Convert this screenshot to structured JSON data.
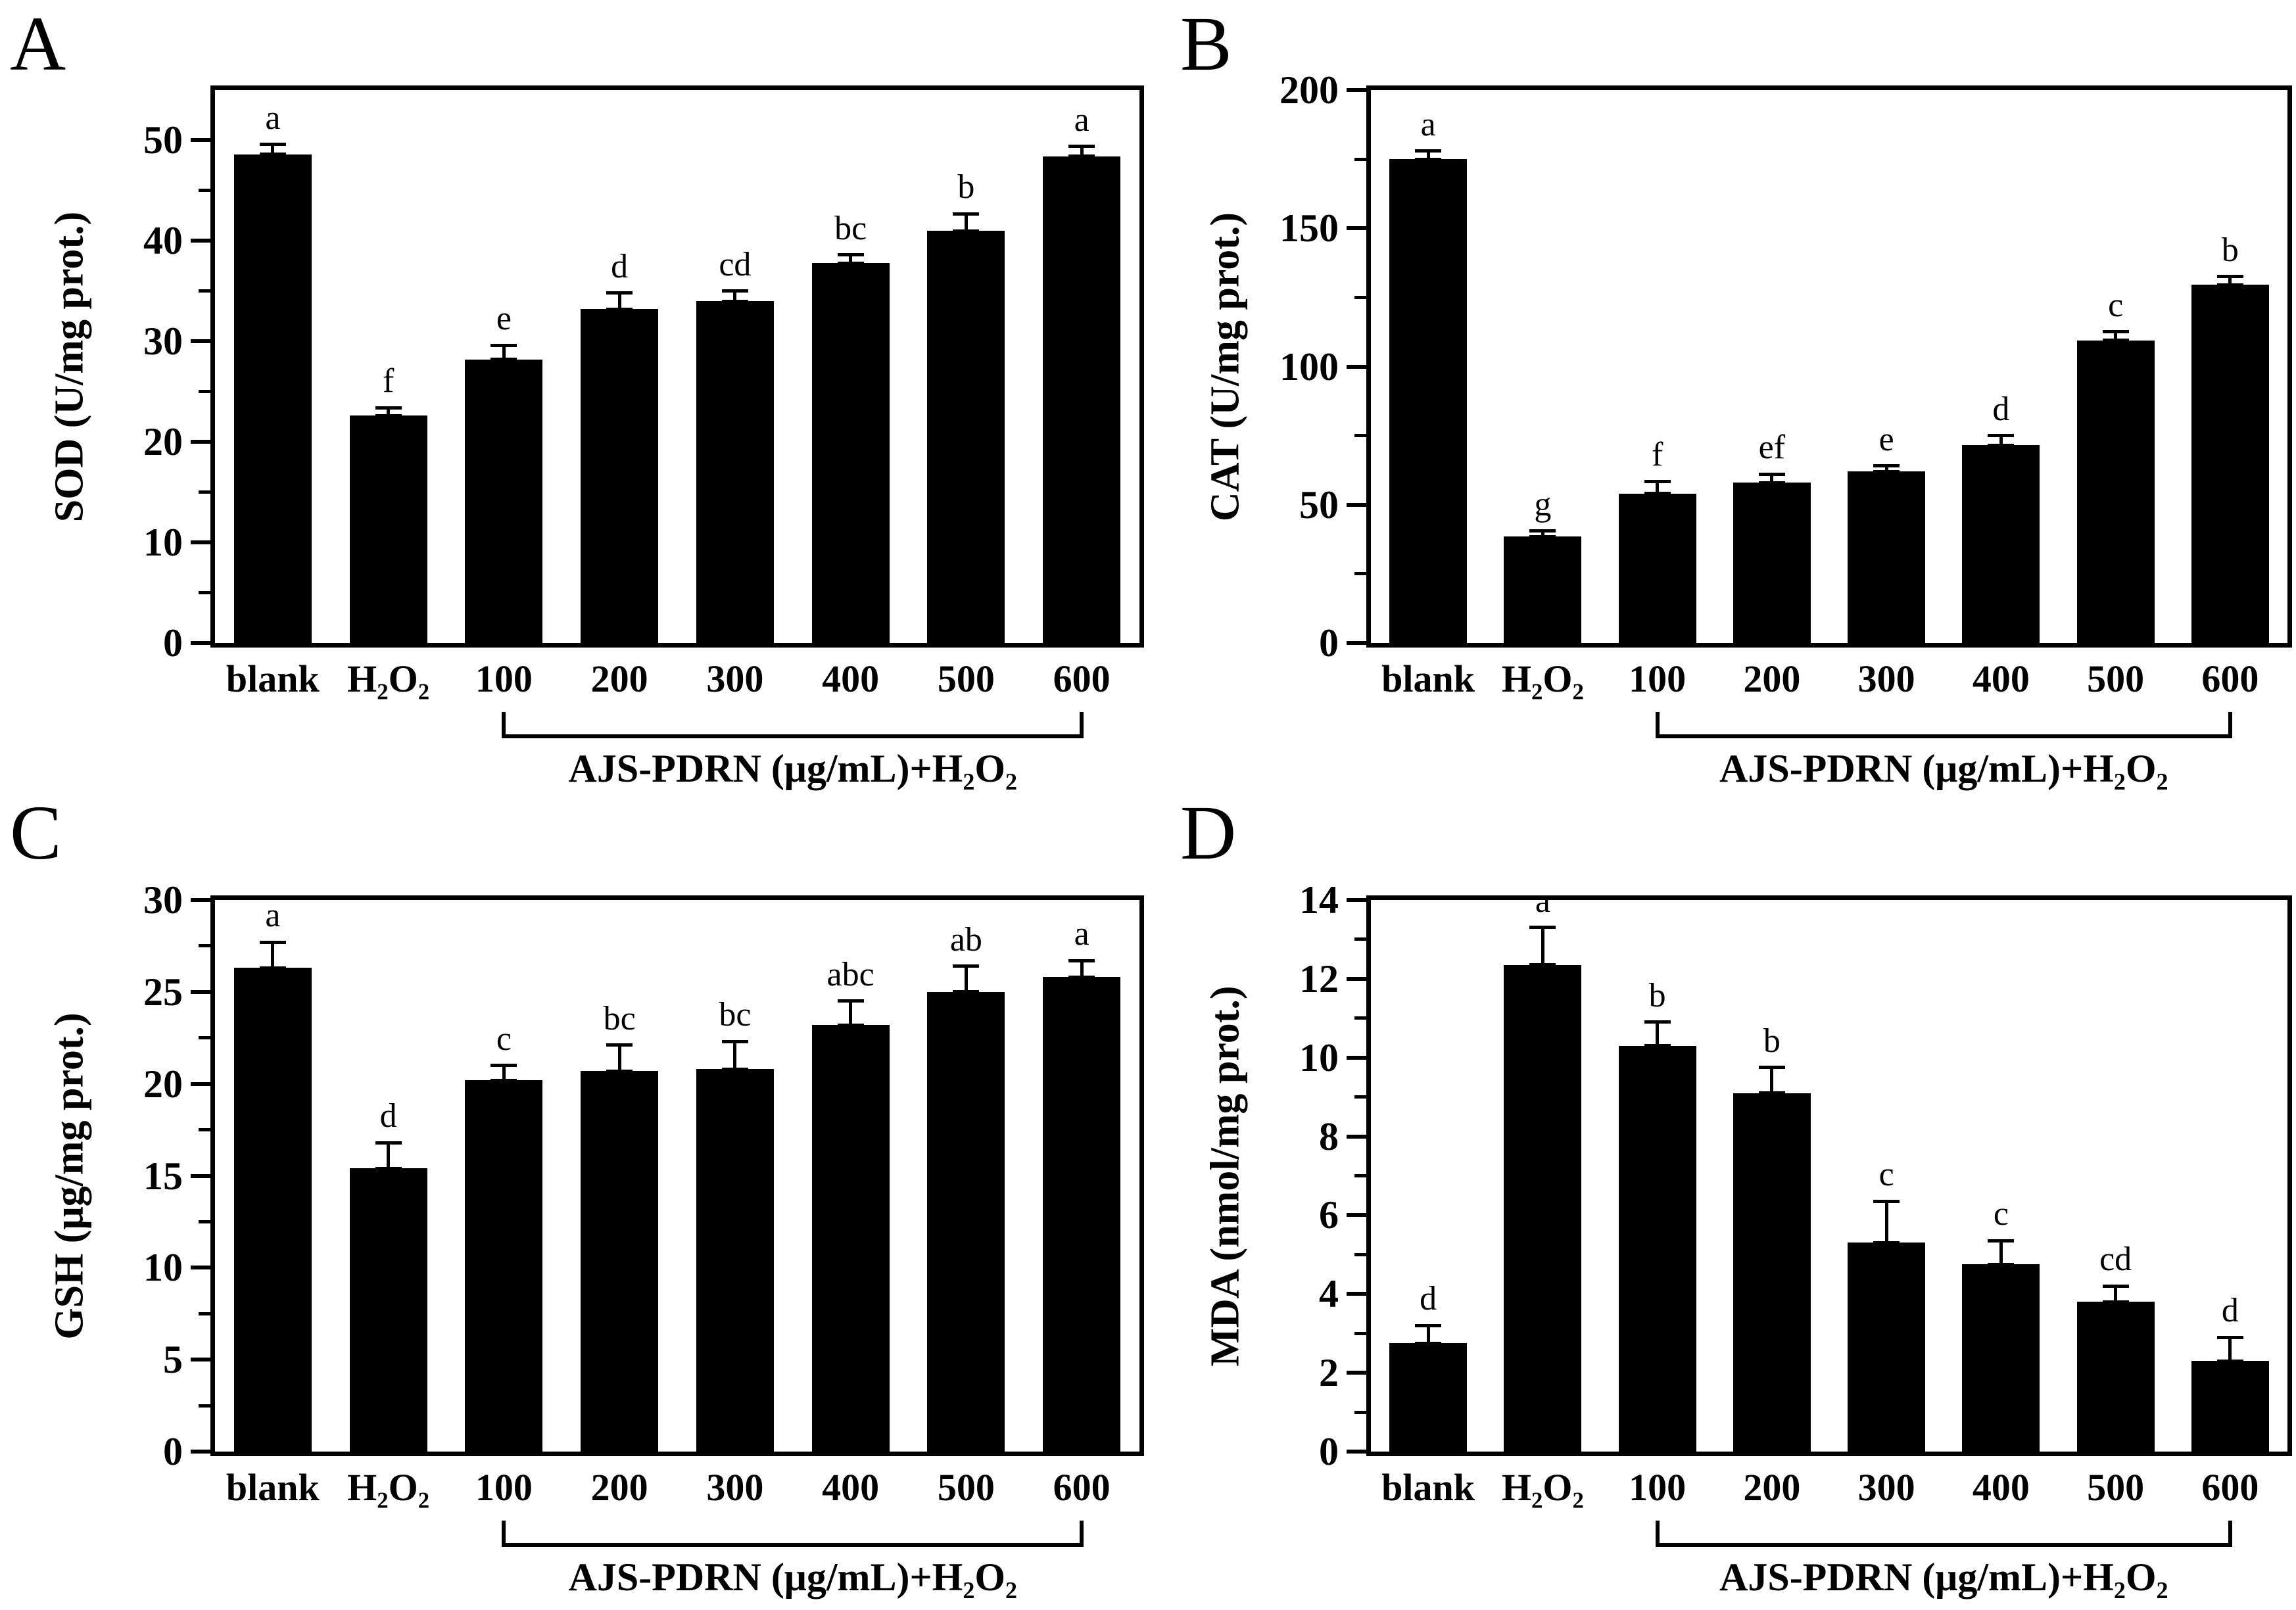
{
  "figure": {
    "background_color": "#ffffff",
    "bar_color": "#000000",
    "text_color": "#000000",
    "panel_letters": [
      "A",
      "B",
      "C",
      "D"
    ]
  },
  "chart_data": [
    {
      "panel": "A",
      "type": "bar",
      "title": "",
      "xlabel": "",
      "ylabel": "SOD (U/mg prot.)",
      "categories": [
        "blank",
        "H₂O₂",
        "100",
        "200",
        "300",
        "400",
        "500",
        "600"
      ],
      "values": [
        48.6,
        22.6,
        28.2,
        33.2,
        34.0,
        37.8,
        41.0,
        48.4
      ],
      "errors": [
        1.0,
        0.8,
        1.4,
        1.6,
        1.0,
        0.8,
        1.7,
        1.0
      ],
      "sig_letters": [
        "a",
        "f",
        "e",
        "d",
        "cd",
        "bc",
        "b",
        "a"
      ],
      "ylim": [
        0,
        55
      ],
      "yticks_major": [
        0,
        10,
        20,
        30,
        40,
        50
      ],
      "ytick_labels": [
        "0",
        "10",
        "20",
        "30",
        "40",
        "50"
      ],
      "yticks_minor": [
        5,
        15,
        25,
        35,
        45
      ],
      "grid": "off",
      "legend": "none",
      "group_bracket": {
        "from_index": 2,
        "to_index": 7,
        "label": "AJS-PDRN (μg/mL)+H₂O₂"
      }
    },
    {
      "panel": "B",
      "type": "bar",
      "title": "",
      "xlabel": "",
      "ylabel": "CAT (U/mg prot.)",
      "categories": [
        "blank",
        "H₂O₂",
        "100",
        "200",
        "300",
        "400",
        "500",
        "600"
      ],
      "values": [
        175,
        38.5,
        54,
        58,
        62,
        71.5,
        109.5,
        129.5
      ],
      "errors": [
        3,
        2,
        4.5,
        3,
        2,
        3.5,
        3,
        3
      ],
      "sig_letters": [
        "a",
        "g",
        "f",
        "ef",
        "e",
        "d",
        "c",
        "b"
      ],
      "ylim": [
        0,
        200
      ],
      "yticks_major": [
        0,
        50,
        100,
        150,
        200
      ],
      "ytick_labels": [
        "0",
        "50",
        "100",
        "150",
        "200"
      ],
      "yticks_minor": [
        25,
        75,
        125,
        175
      ],
      "grid": "off",
      "legend": "none",
      "group_bracket": {
        "from_index": 2,
        "to_index": 7,
        "label": "AJS-PDRN (μg/mL)+H₂O₂"
      }
    },
    {
      "panel": "C",
      "type": "bar",
      "title": "",
      "xlabel": "",
      "ylabel": "GSH (μg/mg prot.)",
      "categories": [
        "blank",
        "H₂O₂",
        "100",
        "200",
        "300",
        "400",
        "500",
        "600"
      ],
      "values": [
        26.3,
        15.4,
        20.2,
        20.7,
        20.8,
        23.2,
        25.0,
        25.8
      ],
      "errors": [
        1.4,
        1.4,
        0.8,
        1.4,
        1.5,
        1.3,
        1.4,
        0.9
      ],
      "sig_letters": [
        "a",
        "d",
        "c",
        "bc",
        "bc",
        "abc",
        "ab",
        "a"
      ],
      "ylim": [
        0,
        30
      ],
      "yticks_major": [
        0,
        5,
        10,
        15,
        20,
        25,
        30
      ],
      "ytick_labels": [
        "0",
        "5",
        "10",
        "15",
        "20",
        "25",
        "30"
      ],
      "yticks_minor": [
        2.5,
        7.5,
        12.5,
        17.5,
        22.5,
        27.5
      ],
      "grid": "off",
      "legend": "none",
      "group_bracket": {
        "from_index": 2,
        "to_index": 7,
        "label": "AJS-PDRN (μg/mL)+H₂O₂"
      }
    },
    {
      "panel": "D",
      "type": "bar",
      "title": "",
      "xlabel": "",
      "ylabel": "MDA (nmol/mg prot.)",
      "categories": [
        "blank",
        "H₂O₂",
        "100",
        "200",
        "300",
        "400",
        "500",
        "600"
      ],
      "values": [
        2.75,
        12.35,
        10.3,
        9.1,
        5.3,
        4.75,
        3.8,
        2.3
      ],
      "errors": [
        0.45,
        0.95,
        0.6,
        0.65,
        1.05,
        0.6,
        0.4,
        0.6
      ],
      "sig_letters": [
        "d",
        "a",
        "b",
        "b",
        "c",
        "c",
        "cd",
        "d"
      ],
      "ylim": [
        0,
        14
      ],
      "yticks_major": [
        0,
        2,
        4,
        6,
        8,
        10,
        12,
        14
      ],
      "ytick_labels": [
        "0",
        "2",
        "4",
        "6",
        "8",
        "10",
        "12",
        "14"
      ],
      "yticks_minor": [
        1,
        3,
        5,
        7,
        9,
        11,
        13
      ],
      "grid": "off",
      "legend": "none",
      "group_bracket": {
        "from_index": 2,
        "to_index": 7,
        "label": "AJS-PDRN (μg/mL)+H₂O₂"
      }
    }
  ]
}
